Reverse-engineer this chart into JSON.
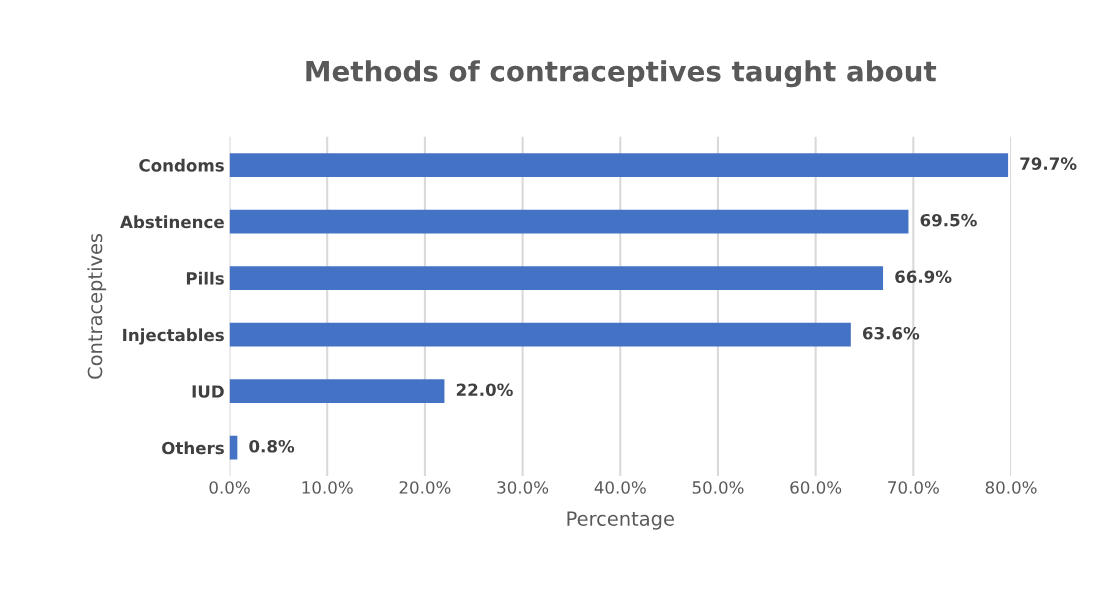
{
  "chart_data": {
    "type": "bar",
    "orientation": "horizontal",
    "title": "Methods of contraceptives taught about",
    "xlabel": "Percentage",
    "ylabel": "Contraceptives",
    "categories": [
      "Condoms",
      "Abstinence",
      "Pills",
      "Injectables",
      "IUD",
      "Others"
    ],
    "values": [
      79.7,
      69.5,
      66.9,
      63.6,
      22.0,
      0.8
    ],
    "value_labels": [
      "79.7%",
      "69.5%",
      "66.9%",
      "63.6%",
      "22.0%",
      "0.8%"
    ],
    "color": "#4472c4",
    "xlim": [
      0,
      80
    ],
    "xticks": [
      {
        "value": 0,
        "label": "0.0%"
      },
      {
        "value": 10,
        "label": "10.0%"
      },
      {
        "value": 20,
        "label": "20.0%"
      },
      {
        "value": 30,
        "label": "30.0%"
      },
      {
        "value": 40,
        "label": "40.0%"
      },
      {
        "value": 50,
        "label": "50.0%"
      },
      {
        "value": 60,
        "label": "60.0%"
      },
      {
        "value": 70,
        "label": "70.0%"
      },
      {
        "value": 80,
        "label": "80.0%"
      }
    ],
    "grid": "x"
  }
}
